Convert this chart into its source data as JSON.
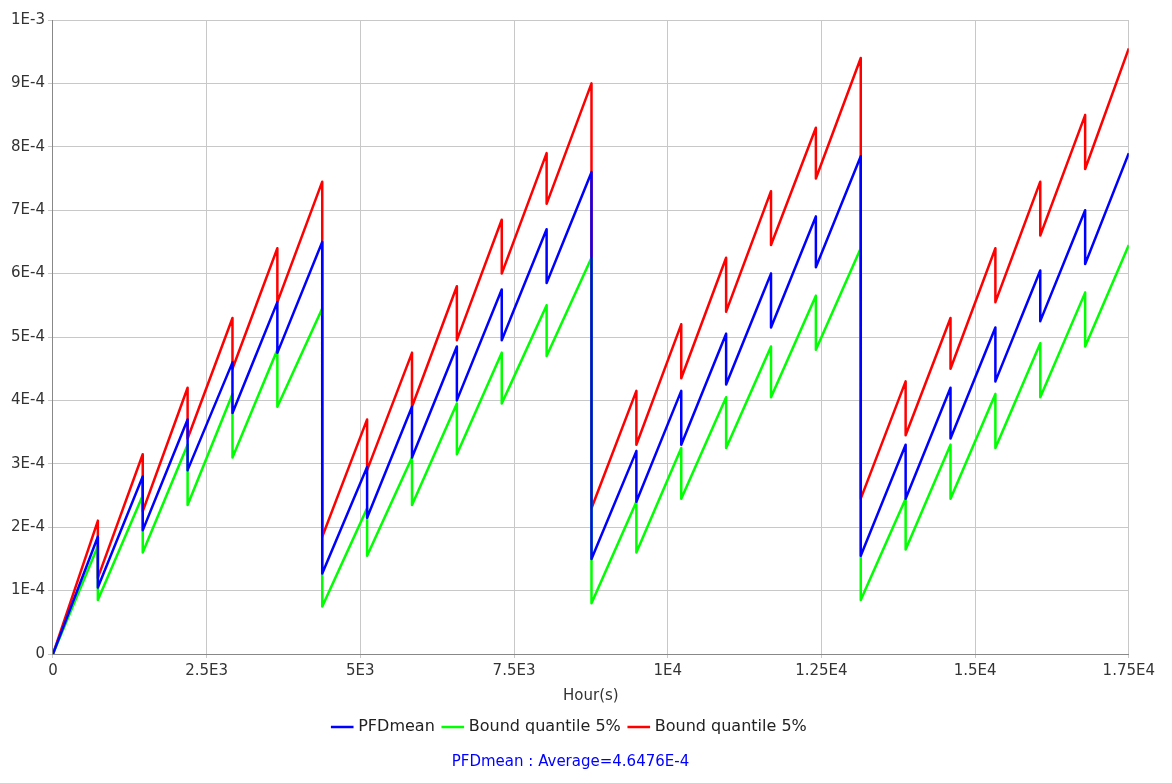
{
  "chart_data": {
    "type": "line",
    "xlabel": "Hour(s)",
    "annotations": [
      "PFDmean : Average=4.6476E-4"
    ],
    "x": [
      0,
      730,
      730,
      1460,
      1460,
      2190,
      2190,
      2920,
      2920,
      3650,
      3650,
      4380,
      4380,
      5110,
      5110,
      5840,
      5840,
      6570,
      6570,
      7300,
      7300,
      8030,
      8030,
      8760,
      8760,
      9490,
      9490,
      10220,
      10220,
      10950,
      10950,
      11680,
      11680,
      12410,
      12410,
      13140,
      13140,
      13870,
      13870,
      14600,
      14600,
      15330,
      15330,
      16060,
      16060,
      16790,
      16790,
      17500
    ],
    "series": [
      {
        "name": "PFDmean",
        "color": "#0000ff",
        "values": [
          0,
          0.000185,
          0.000105,
          0.00028,
          0.000195,
          0.00037,
          0.00029,
          0.00046,
          0.00038,
          0.000555,
          0.000475,
          0.00065,
          0.000127,
          0.000295,
          0.000215,
          0.00039,
          0.00031,
          0.000485,
          0.0004,
          0.000575,
          0.000495,
          0.00067,
          0.000585,
          0.00076,
          0.00015,
          0.00032,
          0.00024,
          0.000415,
          0.00033,
          0.000505,
          0.000425,
          0.0006,
          0.000515,
          0.00069,
          0.00061,
          0.000785,
          0.000155,
          0.00033,
          0.000245,
          0.00042,
          0.00034,
          0.000515,
          0.00043,
          0.000605,
          0.000525,
          0.0007,
          0.000615,
          0.00079
        ]
      },
      {
        "name": "Bound quantile 5%",
        "color": "#00ff00",
        "values": [
          0,
          0.00017,
          8.5e-05,
          0.00025,
          0.00016,
          0.00033,
          0.000235,
          0.00041,
          0.00031,
          0.00048,
          0.00039,
          0.000545,
          7.5e-05,
          0.00023,
          0.000155,
          0.00031,
          0.000235,
          0.000395,
          0.000315,
          0.000475,
          0.000395,
          0.00055,
          0.00047,
          0.000625,
          8e-05,
          0.00024,
          0.00016,
          0.000325,
          0.000245,
          0.000405,
          0.000325,
          0.000485,
          0.000405,
          0.000565,
          0.00048,
          0.00064,
          8.5e-05,
          0.000245,
          0.000165,
          0.00033,
          0.000245,
          0.00041,
          0.000325,
          0.00049,
          0.000405,
          0.00057,
          0.000485,
          0.000645
        ]
      },
      {
        "name": "Bound quantile 5%",
        "color": "#ff0000",
        "values": [
          0,
          0.00021,
          0.00012,
          0.000315,
          0.000225,
          0.00042,
          0.00034,
          0.00053,
          0.00045,
          0.00064,
          0.000555,
          0.000745,
          0.000185,
          0.00037,
          0.00029,
          0.000475,
          0.00039,
          0.00058,
          0.000495,
          0.000685,
          0.0006,
          0.00079,
          0.00071,
          0.0009,
          0.00023,
          0.000415,
          0.00033,
          0.00052,
          0.000435,
          0.000625,
          0.00054,
          0.00073,
          0.000645,
          0.00083,
          0.00075,
          0.00094,
          0.000245,
          0.00043,
          0.000345,
          0.00053,
          0.00045,
          0.00064,
          0.000555,
          0.000745,
          0.00066,
          0.00085,
          0.000765,
          0.000955
        ]
      }
    ],
    "xlim": [
      0,
      17500
    ],
    "xticks": [
      0,
      {
        "value": 2500,
        "label": "2.5E3"
      },
      {
        "value": 5000,
        "label": "5E3"
      },
      {
        "value": 7500,
        "label": "7.5E3"
      },
      {
        "value": 10000,
        "label": "1E4"
      },
      {
        "value": 12500,
        "label": "1.25E4"
      },
      {
        "value": 15000,
        "label": "1.5E4"
      },
      {
        "value": 17500,
        "label": "1.75E4"
      }
    ],
    "ylim": [
      0,
      0.001
    ],
    "yticks": [
      0,
      {
        "value": 0.0001,
        "label": "1E-4"
      },
      {
        "value": 0.0002,
        "label": "2E-4"
      },
      {
        "value": 0.0003,
        "label": "3E-4"
      },
      {
        "value": 0.0004,
        "label": "4E-4"
      },
      {
        "value": 0.0005,
        "label": "5E-4"
      },
      {
        "value": 0.0006,
        "label": "6E-4"
      },
      {
        "value": 0.0007,
        "label": "7E-4"
      },
      {
        "value": 0.0008,
        "label": "8E-4"
      },
      {
        "value": 0.0009,
        "label": "9E-4"
      },
      {
        "value": 0.001,
        "label": "1E-3"
      }
    ],
    "grid": true,
    "legend": "bottom",
    "marker": "none",
    "line_style": "solid"
  }
}
